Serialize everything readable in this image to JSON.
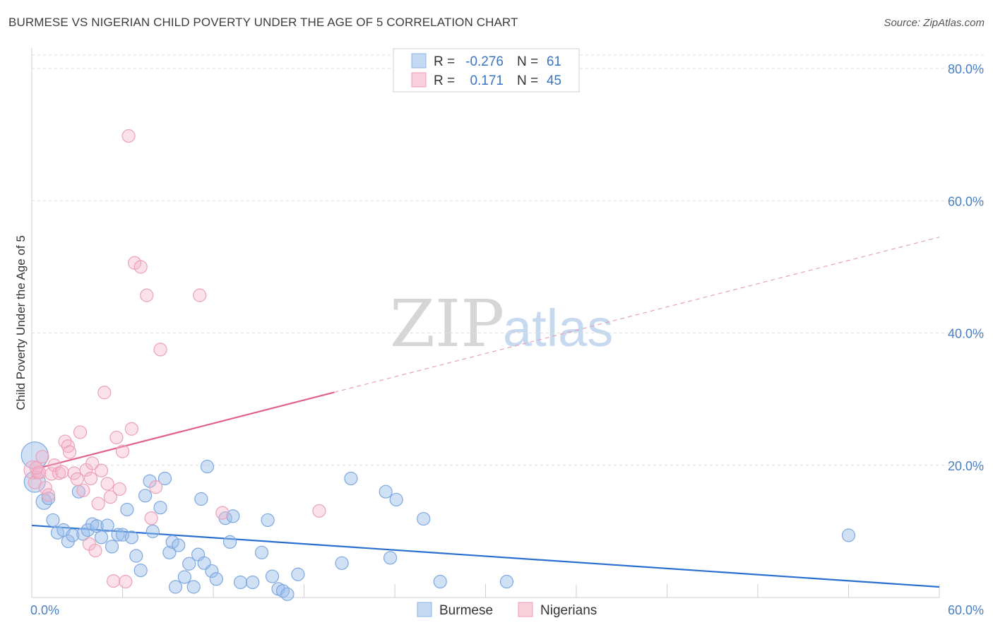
{
  "header": {
    "title": "BURMESE VS NIGERIAN CHILD POVERTY UNDER THE AGE OF 5 CORRELATION CHART",
    "source": "Source: ZipAtlas.com"
  },
  "watermark": {
    "zip": "ZIP",
    "atlas": "atlas"
  },
  "legend_stats": {
    "r_label": "R =",
    "n_label": "N =",
    "rows": [
      {
        "r": "-0.276",
        "n": "61",
        "color": "#a9c8ee"
      },
      {
        "r": "0.171",
        "n": "45",
        "color": "#f5b8cb"
      }
    ]
  },
  "bottom_legend": [
    {
      "label": "Burmese",
      "color": "#a9c8ee"
    },
    {
      "label": "Nigerians",
      "color": "#f5b8cb"
    }
  ],
  "chart_data": {
    "type": "scatter",
    "title": "BURMESE VS NIGERIAN CHILD POVERTY UNDER THE AGE OF 5 CORRELATION CHART",
    "xlabel": "",
    "ylabel": "Child Poverty Under the Age of 5",
    "xlim": [
      0,
      60
    ],
    "ylim": [
      0,
      80
    ],
    "x_tick_labels": [
      "0.0%",
      "60.0%"
    ],
    "y_tick_labels": [
      "20.0%",
      "40.0%",
      "60.0%",
      "80.0%"
    ],
    "y_ticks": [
      20,
      40,
      60,
      80
    ],
    "grid": true,
    "legend_position": "top-center",
    "series": [
      {
        "name": "Burmese",
        "color": "#6fa0de",
        "trend": {
          "y_at_0": 10.9,
          "y_at_60": 1.6,
          "style": "solid",
          "x_end": 60
        },
        "points": [
          [
            0.2,
            21.5
          ],
          [
            0.2,
            17.5
          ],
          [
            0.8,
            14.5
          ],
          [
            1.1,
            15.0
          ],
          [
            1.4,
            11.7
          ],
          [
            1.7,
            9.8
          ],
          [
            2.1,
            10.2
          ],
          [
            2.4,
            8.5
          ],
          [
            2.7,
            9.4
          ],
          [
            3.1,
            16.0
          ],
          [
            3.4,
            9.6
          ],
          [
            3.7,
            10.2
          ],
          [
            4.0,
            11.1
          ],
          [
            4.3,
            10.8
          ],
          [
            4.6,
            9.1
          ],
          [
            5.0,
            10.9
          ],
          [
            5.3,
            7.7
          ],
          [
            5.7,
            9.5
          ],
          [
            6.0,
            9.5
          ],
          [
            6.3,
            13.3
          ],
          [
            6.6,
            9.1
          ],
          [
            6.9,
            6.3
          ],
          [
            7.2,
            4.1
          ],
          [
            7.5,
            15.4
          ],
          [
            7.8,
            17.6
          ],
          [
            8.0,
            10.0
          ],
          [
            8.5,
            13.6
          ],
          [
            8.8,
            18.0
          ],
          [
            9.1,
            6.8
          ],
          [
            9.3,
            8.4
          ],
          [
            9.5,
            1.6
          ],
          [
            9.7,
            7.9
          ],
          [
            10.1,
            3.1
          ],
          [
            10.4,
            5.1
          ],
          [
            10.7,
            1.6
          ],
          [
            11.0,
            6.5
          ],
          [
            11.2,
            14.9
          ],
          [
            11.4,
            5.2
          ],
          [
            11.6,
            19.8
          ],
          [
            11.9,
            4.0
          ],
          [
            12.2,
            2.8
          ],
          [
            12.8,
            12.0
          ],
          [
            13.1,
            8.4
          ],
          [
            13.3,
            12.3
          ],
          [
            13.8,
            2.3
          ],
          [
            14.6,
            2.3
          ],
          [
            15.2,
            6.8
          ],
          [
            15.6,
            11.7
          ],
          [
            15.9,
            3.2
          ],
          [
            16.3,
            1.3
          ],
          [
            16.6,
            1.0
          ],
          [
            16.9,
            0.5
          ],
          [
            17.6,
            3.5
          ],
          [
            20.5,
            5.2
          ],
          [
            21.1,
            18.0
          ],
          [
            23.4,
            16.0
          ],
          [
            23.7,
            6.0
          ],
          [
            24.1,
            14.8
          ],
          [
            25.9,
            11.9
          ],
          [
            27.0,
            2.4
          ],
          [
            31.4,
            2.4
          ],
          [
            54.0,
            9.4
          ]
        ]
      },
      {
        "name": "Nigerians",
        "color": "#ec8fab",
        "trend": {
          "y_at_0": 19.3,
          "y_at_60": 54.5,
          "style": "solid-then-dashed",
          "x_solid_end": 20,
          "x_end": 60
        },
        "points": [
          [
            0.1,
            19.3
          ],
          [
            0.2,
            17.4
          ],
          [
            0.4,
            18.9
          ],
          [
            0.5,
            18.9
          ],
          [
            0.7,
            21.3
          ],
          [
            0.9,
            16.6
          ],
          [
            1.1,
            15.5
          ],
          [
            1.3,
            18.7
          ],
          [
            1.5,
            20.0
          ],
          [
            1.8,
            18.8
          ],
          [
            2.0,
            19.0
          ],
          [
            2.2,
            23.6
          ],
          [
            2.4,
            22.9
          ],
          [
            2.5,
            22.0
          ],
          [
            2.8,
            18.8
          ],
          [
            3.0,
            17.9
          ],
          [
            3.2,
            25.0
          ],
          [
            3.4,
            16.2
          ],
          [
            3.6,
            19.3
          ],
          [
            3.8,
            8.1
          ],
          [
            3.9,
            18.0
          ],
          [
            4.0,
            20.3
          ],
          [
            4.2,
            7.1
          ],
          [
            4.4,
            14.2
          ],
          [
            4.6,
            19.2
          ],
          [
            4.8,
            31.0
          ],
          [
            5.0,
            17.2
          ],
          [
            5.2,
            15.2
          ],
          [
            5.4,
            2.5
          ],
          [
            5.6,
            24.2
          ],
          [
            5.8,
            16.4
          ],
          [
            6.0,
            22.1
          ],
          [
            6.2,
            2.4
          ],
          [
            6.4,
            69.8
          ],
          [
            6.6,
            25.5
          ],
          [
            6.8,
            50.6
          ],
          [
            7.2,
            50.0
          ],
          [
            7.6,
            45.7
          ],
          [
            7.9,
            12.0
          ],
          [
            8.2,
            16.7
          ],
          [
            8.5,
            37.5
          ],
          [
            11.1,
            45.7
          ],
          [
            12.6,
            12.8
          ],
          [
            19.0,
            13.1
          ],
          [
            0.3,
            19.6
          ]
        ]
      }
    ]
  }
}
